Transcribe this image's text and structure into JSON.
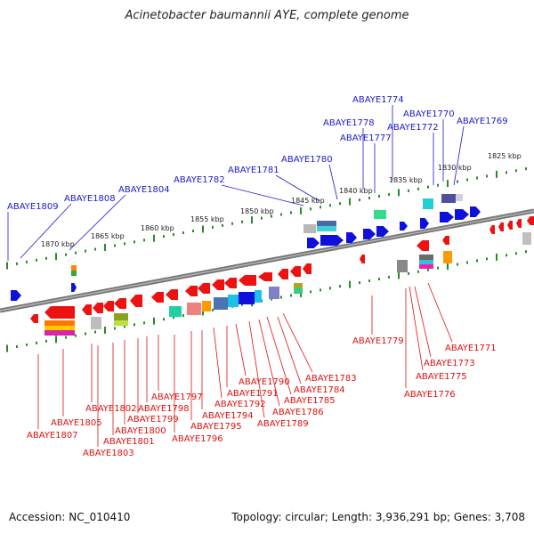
{
  "title": "Acinetobacter baumannii AYE, complete genome",
  "footer": {
    "accession": "Accession: NC_010410",
    "summary": "Topology: circular; Length: 3,936,291 bp; Genes: 3,708"
  },
  "colors": {
    "upper_label": "#1a1acc",
    "lower_label": "#dd1111",
    "backbone": "#777777",
    "tick": "#2a8a2a"
  },
  "scale_labels": [
    "1825 kbp",
    "1830 kbp",
    "1835 kbp",
    "1840 kbp",
    "1845 kbp",
    "1850 kbp",
    "1855 kbp",
    "1860 kbp",
    "1865 kbp",
    "1870 kbp"
  ],
  "upper_genes": [
    "ABAYE1774",
    "ABAYE1770",
    "ABAYE1769",
    "ABAYE1778",
    "ABAYE1772",
    "ABAYE1777",
    "ABAYE1780",
    "ABAYE1781",
    "ABAYE1782",
    "ABAYE1804",
    "ABAYE1808",
    "ABAYE1809"
  ],
  "lower_genes": [
    "ABAYE1779",
    "ABAYE1771",
    "ABAYE1773",
    "ABAYE1775",
    "ABAYE1776",
    "ABAYE1783",
    "ABAYE1784",
    "ABAYE1785",
    "ABAYE1786",
    "ABAYE1789",
    "ABAYE1790",
    "ABAYE1791",
    "ABAYE1792",
    "ABAYE1794",
    "ABAYE1795",
    "ABAYE1796",
    "ABAYE1797",
    "ABAYE1798",
    "ABAYE1799",
    "ABAYE1800",
    "ABAYE1801",
    "ABAYE1802",
    "ABAYE1803",
    "ABAYE1805",
    "ABAYE1807"
  ]
}
